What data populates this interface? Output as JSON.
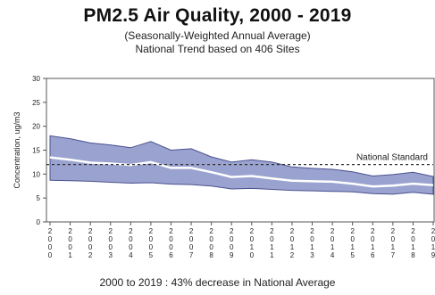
{
  "header": {
    "title": "PM2.5 Air Quality, 2000 - 2019",
    "subtitle1": "(Seasonally-Weighted Annual Average)",
    "subtitle2": "National Trend based on 406 Sites"
  },
  "footer": "2000 to 2019 :  43% decrease in National Average",
  "colors": {
    "band": "#9aa3cf",
    "band_edge": "#4a528f",
    "mean_line": "#ffffff",
    "standard_line": "#333333"
  },
  "chart_data": {
    "type": "area",
    "ylabel": "Concentration, ug/m3",
    "xlabel": "",
    "ylim": [
      0,
      30
    ],
    "yticks": [
      0,
      5,
      10,
      15,
      20,
      25,
      30
    ],
    "x": [
      2000,
      2001,
      2002,
      2003,
      2004,
      2005,
      2006,
      2007,
      2008,
      2009,
      2010,
      2011,
      2012,
      2013,
      2014,
      2015,
      2016,
      2017,
      2018,
      2019
    ],
    "series": [
      {
        "role": "upper_bound",
        "values": [
          18.0,
          17.4,
          16.5,
          16.1,
          15.5,
          16.8,
          15.0,
          15.3,
          13.6,
          12.5,
          13.0,
          12.5,
          11.5,
          11.2,
          11.0,
          10.5,
          9.6,
          9.9,
          10.4,
          9.5
        ]
      },
      {
        "role": "national_average",
        "values": [
          13.5,
          13.0,
          12.4,
          12.2,
          11.9,
          12.5,
          11.3,
          11.3,
          10.4,
          9.4,
          9.6,
          9.1,
          8.6,
          8.5,
          8.4,
          8.0,
          7.4,
          7.6,
          8.0,
          7.7
        ]
      },
      {
        "role": "lower_bound",
        "values": [
          8.7,
          8.6,
          8.5,
          8.3,
          8.1,
          8.2,
          7.9,
          7.8,
          7.5,
          6.9,
          7.0,
          6.8,
          6.6,
          6.5,
          6.4,
          6.3,
          5.9,
          5.8,
          6.2,
          5.8
        ]
      }
    ],
    "reference_line": {
      "label": "National Standard",
      "value": 12
    },
    "grid": false
  }
}
